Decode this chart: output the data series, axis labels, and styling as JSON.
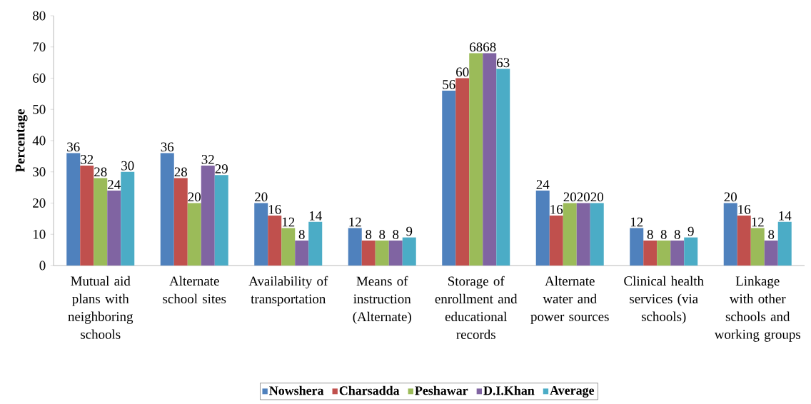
{
  "chart_data": {
    "type": "bar",
    "ylabel": "Percentage",
    "categories": [
      "Mutual aid plans with neighboring schools",
      "Alternate school sites",
      "Availability of transportation",
      "Means of instruction (Alternate)",
      "Storage of enrollment and educational records",
      "Alternate water and power sources",
      "Clinical health services (via schools)",
      "Linkage with other schools and working groups"
    ],
    "series": [
      {
        "name": "Nowshera",
        "color": "#4f81bd",
        "values": [
          36,
          36,
          20,
          12,
          56,
          24,
          12,
          20
        ]
      },
      {
        "name": "Charsadda",
        "color": "#c0504d",
        "values": [
          32,
          28,
          16,
          8,
          60,
          16,
          8,
          16
        ]
      },
      {
        "name": "Peshawar",
        "color": "#9bbb59",
        "values": [
          28,
          20,
          12,
          8,
          68,
          20,
          8,
          12
        ]
      },
      {
        "name": "D.I.Khan",
        "color": "#8064a2",
        "values": [
          24,
          32,
          8,
          8,
          68,
          20,
          8,
          8
        ]
      },
      {
        "name": "Average",
        "color": "#4bacc6",
        "values": [
          30,
          29,
          14,
          9,
          63,
          20,
          9,
          14
        ]
      }
    ],
    "ylim": [
      0,
      80
    ],
    "yticks": [
      0,
      10,
      20,
      30,
      40,
      50,
      60,
      70,
      80
    ],
    "grid": false,
    "legend": "bottom",
    "data_labels": true
  }
}
